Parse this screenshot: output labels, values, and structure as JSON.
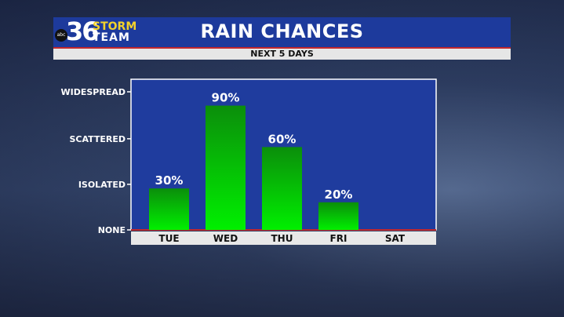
{
  "header": {
    "title": "RAIN CHANCES",
    "subtitle": "NEXT 5 DAYS",
    "logo": {
      "network": "abc",
      "number": "36",
      "word1": "STORM",
      "word2": "TEAM"
    }
  },
  "colors": {
    "banner": "#1d3a9c",
    "plot_bg": "#1f3c9e",
    "bar_top": "#0a9a0a",
    "bar_bottom": "#00ee00",
    "accent_red": "#c0272d"
  },
  "chart_data": {
    "type": "bar",
    "title": "RAIN CHANCES",
    "subtitle": "NEXT 5 DAYS",
    "categories": [
      "TUE",
      "WED",
      "THU",
      "FRI",
      "SAT"
    ],
    "values": [
      30,
      90,
      60,
      20,
      null
    ],
    "data_labels": [
      "30%",
      "90%",
      "60%",
      "20%",
      ""
    ],
    "ylim": [
      0,
      100
    ],
    "yticks": [
      {
        "value": 0,
        "label": "NONE"
      },
      {
        "value": 33,
        "label": "ISOLATED"
      },
      {
        "value": 66,
        "label": "SCATTERED"
      },
      {
        "value": 100,
        "label": "WIDESPREAD"
      }
    ],
    "grid": false
  }
}
